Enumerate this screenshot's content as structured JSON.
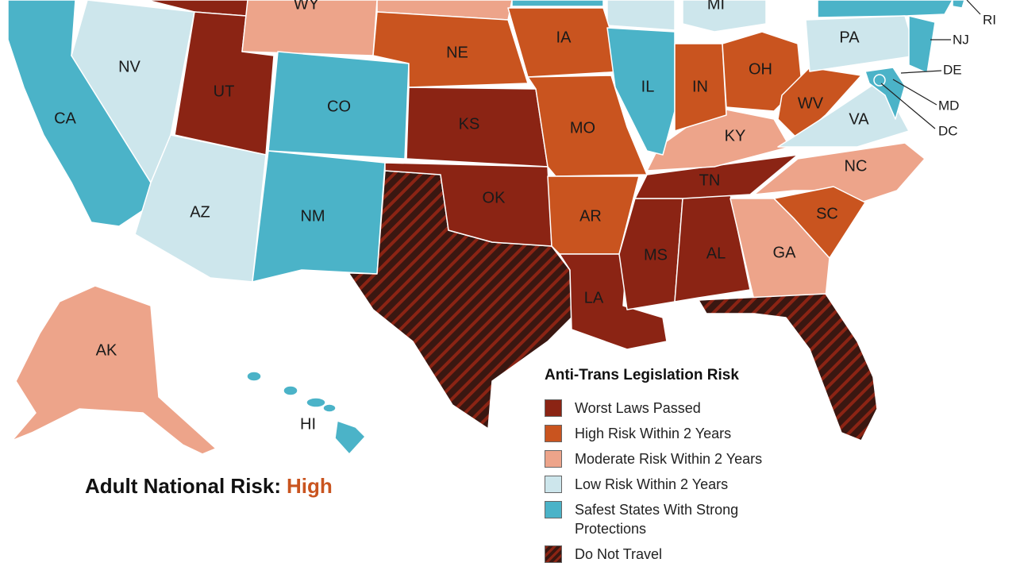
{
  "map": {
    "national_risk": {
      "label": "Adult National Risk:",
      "level": "High"
    },
    "legend": {
      "title": "Anti-Trans Legislation Risk",
      "items": [
        {
          "label": "Worst Laws Passed",
          "color": "#8b2414",
          "states": [
            "UT",
            "KS",
            "OK",
            "TN",
            "MS",
            "AL",
            "LA"
          ]
        },
        {
          "label": "High Risk Within 2 Years",
          "color": "#c9541f",
          "states": [
            "NE",
            "IA",
            "MO",
            "AR",
            "IN",
            "OH",
            "WV",
            "SC"
          ]
        },
        {
          "label": "Moderate Risk Within 2 Years",
          "color": "#eda48a",
          "states": [
            "WY",
            "KY",
            "NC",
            "GA",
            "AK"
          ]
        },
        {
          "label": "Low Risk Within 2 Years",
          "color": "#cde6ec",
          "states": [
            "NV",
            "AZ",
            "PA",
            "VA",
            "MI"
          ]
        },
        {
          "label": "Safest States With Strong Protections",
          "color": "#4bb3c8",
          "states": [
            "CA",
            "CO",
            "NM",
            "IL",
            "HI",
            "NJ",
            "DE",
            "MD",
            "DC",
            "RI"
          ]
        },
        {
          "label": "Do Not Travel",
          "color": "#3a1711",
          "states": []
        }
      ]
    }
  }
}
